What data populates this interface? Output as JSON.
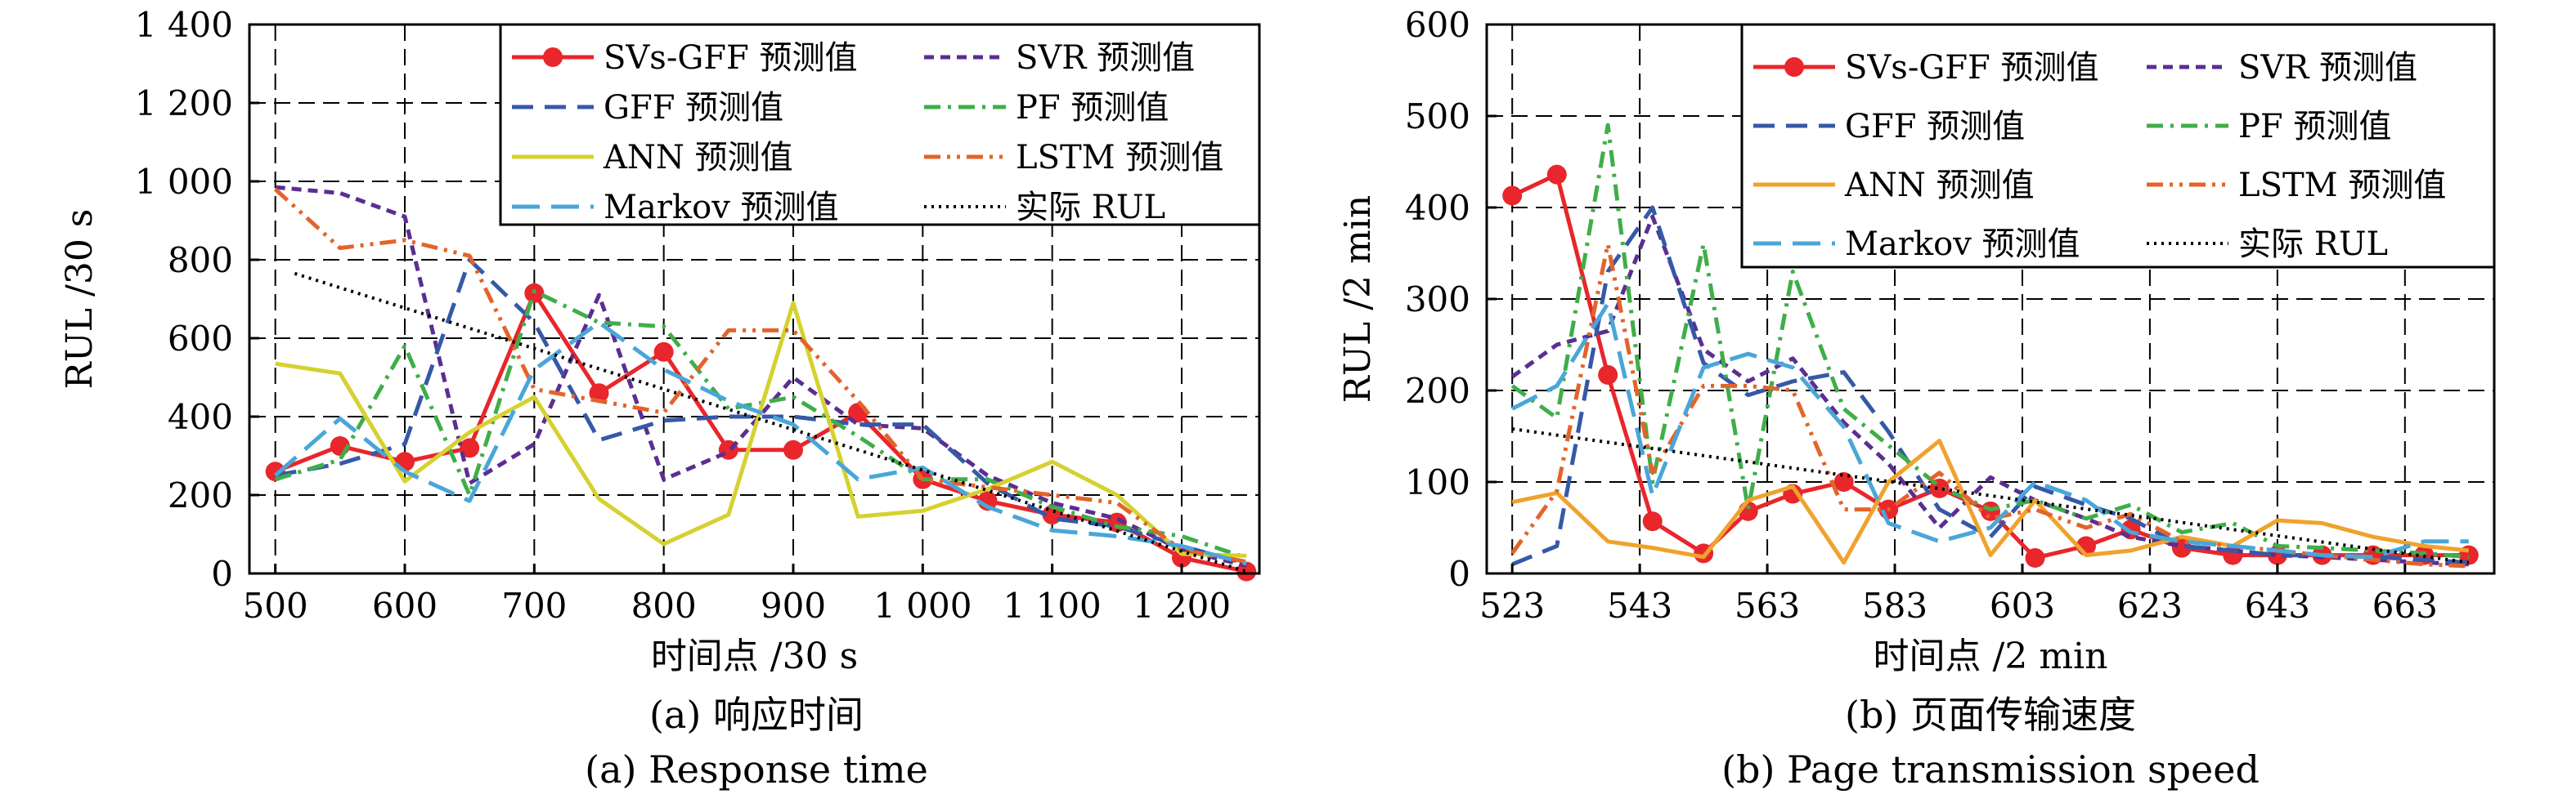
{
  "chart_data": [
    {
      "type": "line",
      "xlabel": "时间点 /30 s",
      "ylabel": "RUL /30 s",
      "captions": [
        "(a) 响应时间",
        "(a) Response time"
      ],
      "xlim": [
        480,
        1260
      ],
      "ylim": [
        0,
        1400
      ],
      "xticks": [
        500,
        600,
        700,
        800,
        900,
        1000,
        1100,
        1200
      ],
      "xtick_labels": [
        "500",
        "600",
        "700",
        "800",
        "900",
        "1 000",
        "1 100",
        "1 200"
      ],
      "yticks": [
        0,
        200,
        400,
        600,
        800,
        1000,
        1200,
        1400
      ],
      "ytick_labels": [
        "0",
        "200",
        "400",
        "600",
        "800",
        "1 000",
        "1 200",
        "1 400"
      ],
      "grid": true,
      "legend_position": "top-right",
      "series": [
        {
          "name": "SVs-GFF 预测值",
          "color": "#e8262b",
          "style": "solid-marker",
          "x": [
            500,
            550,
            600,
            650,
            700,
            750,
            800,
            850,
            900,
            950,
            1000,
            1050,
            1100,
            1150,
            1200,
            1250
          ],
          "y": [
            260,
            325,
            285,
            320,
            715,
            460,
            565,
            315,
            315,
            410,
            240,
            185,
            150,
            130,
            40,
            5
          ]
        },
        {
          "name": "SVR 预测值",
          "color": "#5b2e91",
          "style": "dash",
          "x": [
            500,
            550,
            600,
            650,
            700,
            750,
            800,
            850,
            900,
            950,
            1000,
            1050,
            1100,
            1150,
            1200,
            1250
          ],
          "y": [
            985,
            970,
            910,
            230,
            330,
            710,
            240,
            310,
            500,
            380,
            370,
            250,
            180,
            140,
            60,
            20
          ]
        },
        {
          "name": "GFF 预测值",
          "color": "#3559a8",
          "style": "longdash",
          "x": [
            500,
            550,
            600,
            650,
            700,
            750,
            800,
            850,
            900,
            950,
            1000,
            1050,
            1100,
            1150,
            1200,
            1250
          ],
          "y": [
            250,
            280,
            330,
            800,
            640,
            340,
            390,
            400,
            400,
            380,
            380,
            230,
            140,
            120,
            70,
            25
          ]
        },
        {
          "name": "PF 预测值",
          "color": "#3fae49",
          "style": "dashdot",
          "x": [
            500,
            550,
            600,
            650,
            700,
            750,
            800,
            850,
            900,
            950,
            1000,
            1050,
            1100,
            1150,
            1200,
            1250
          ],
          "y": [
            240,
            290,
            580,
            200,
            720,
            640,
            630,
            420,
            450,
            350,
            240,
            240,
            170,
            120,
            95,
            40
          ]
        },
        {
          "name": "ANN 预测值",
          "color": "#d6d130",
          "style": "solid",
          "x": [
            500,
            550,
            600,
            650,
            700,
            750,
            800,
            850,
            900,
            950,
            1000,
            1050,
            1100,
            1150,
            1200,
            1250
          ],
          "y": [
            535,
            510,
            235,
            360,
            450,
            190,
            75,
            150,
            690,
            145,
            160,
            215,
            285,
            200,
            50,
            45
          ]
        },
        {
          "name": "LSTM 预测值",
          "color": "#e3642a",
          "style": "dashdotdot",
          "x": [
            500,
            550,
            600,
            650,
            700,
            750,
            800,
            850,
            900,
            950,
            1000,
            1050,
            1100,
            1150,
            1200,
            1250
          ],
          "y": [
            980,
            830,
            850,
            810,
            470,
            440,
            410,
            620,
            620,
            440,
            240,
            220,
            200,
            180,
            60,
            30
          ]
        },
        {
          "name": "Markov 预测值",
          "color": "#4aa6d8",
          "style": "longdash2",
          "x": [
            500,
            550,
            600,
            650,
            700,
            750,
            800,
            850,
            900,
            950,
            1000,
            1050,
            1100,
            1150,
            1200,
            1250
          ],
          "y": [
            250,
            395,
            260,
            185,
            520,
            640,
            520,
            440,
            380,
            240,
            270,
            170,
            110,
            95,
            70,
            25
          ]
        },
        {
          "name": "实际 RUL",
          "color": "#000000",
          "style": "dot",
          "x": [
            515,
            1250
          ],
          "y": [
            765,
            5
          ]
        }
      ]
    },
    {
      "type": "line",
      "xlabel": "时间点 /2 min",
      "ylabel": "RUL /2 min",
      "captions": [
        "(b) 页面传输速度",
        "(b) Page transmission speed"
      ],
      "xlim": [
        519,
        677
      ],
      "ylim": [
        0,
        600
      ],
      "xticks": [
        523,
        543,
        563,
        583,
        603,
        623,
        643,
        663
      ],
      "xtick_labels": [
        "523",
        "543",
        "563",
        "583",
        "603",
        "623",
        "643",
        "663"
      ],
      "yticks": [
        0,
        100,
        200,
        300,
        400,
        500,
        600
      ],
      "ytick_labels": [
        "0",
        "100",
        "200",
        "300",
        "400",
        "500",
        "600"
      ],
      "grid": true,
      "legend_position": "top-right",
      "series": [
        {
          "name": "SVs-GFF 预测值",
          "color": "#e8262b",
          "style": "solid-marker",
          "x": [
            523,
            530,
            538,
            545,
            553,
            560,
            567,
            575,
            582,
            590,
            598,
            605,
            613,
            620,
            628,
            636,
            643,
            650,
            658,
            666,
            673
          ],
          "y": [
            413,
            436,
            217,
            57,
            22,
            68,
            87,
            100,
            70,
            93,
            68,
            17,
            30,
            48,
            28,
            20,
            20,
            20,
            20,
            20,
            20
          ]
        },
        {
          "name": "SVR 预测值",
          "color": "#5b2e91",
          "style": "dash",
          "x": [
            523,
            530,
            538,
            545,
            553,
            560,
            567,
            575,
            582,
            590,
            598,
            605,
            613,
            620,
            628,
            636,
            643,
            650,
            658,
            666,
            673
          ],
          "y": [
            215,
            250,
            265,
            390,
            245,
            210,
            235,
            165,
            120,
            50,
            105,
            80,
            60,
            40,
            30,
            25,
            20,
            18,
            15,
            12,
            10
          ]
        },
        {
          "name": "GFF 预测值",
          "color": "#3559a8",
          "style": "longdash",
          "x": [
            523,
            530,
            538,
            545,
            553,
            560,
            567,
            575,
            582,
            590,
            598,
            605,
            613,
            620,
            628,
            636,
            643,
            650,
            658,
            666,
            673
          ],
          "y": [
            10,
            30,
            330,
            400,
            230,
            195,
            210,
            220,
            155,
            70,
            40,
            95,
            75,
            60,
            30,
            25,
            20,
            20,
            18,
            15,
            12
          ]
        },
        {
          "name": "PF 预测值",
          "color": "#3fae49",
          "style": "dashdot",
          "x": [
            523,
            530,
            538,
            545,
            553,
            560,
            567,
            575,
            582,
            590,
            598,
            605,
            613,
            620,
            628,
            636,
            643,
            650,
            658,
            666,
            673
          ],
          "y": [
            205,
            170,
            490,
            100,
            360,
            70,
            330,
            180,
            140,
            95,
            70,
            80,
            60,
            75,
            45,
            55,
            30,
            28,
            25,
            22,
            18
          ]
        },
        {
          "name": "ANN 预测值",
          "color": "#f0a22e",
          "style": "solid",
          "x": [
            523,
            530,
            538,
            545,
            553,
            560,
            567,
            575,
            582,
            590,
            598,
            605,
            613,
            620,
            628,
            636,
            643,
            650,
            658,
            666,
            673
          ],
          "y": [
            78,
            88,
            35,
            28,
            18,
            80,
            95,
            12,
            100,
            145,
            20,
            80,
            20,
            25,
            40,
            30,
            58,
            55,
            40,
            30,
            25
          ]
        },
        {
          "name": "LSTM 预测值",
          "color": "#e3642a",
          "style": "dashdotdot",
          "x": [
            523,
            530,
            538,
            545,
            553,
            560,
            567,
            575,
            582,
            590,
            598,
            605,
            613,
            620,
            628,
            636,
            643,
            650,
            658,
            666,
            673
          ],
          "y": [
            22,
            90,
            360,
            110,
            205,
            205,
            200,
            70,
            70,
            110,
            60,
            70,
            50,
            65,
            35,
            30,
            25,
            20,
            15,
            10,
            8
          ]
        },
        {
          "name": "Markov 预测值",
          "color": "#4aa6d8",
          "style": "longdash2",
          "x": [
            523,
            530,
            538,
            545,
            553,
            560,
            567,
            575,
            582,
            590,
            598,
            605,
            613,
            620,
            628,
            636,
            643,
            650,
            658,
            666,
            673
          ],
          "y": [
            180,
            205,
            295,
            85,
            225,
            240,
            225,
            160,
            55,
            35,
            50,
            100,
            80,
            45,
            35,
            30,
            25,
            20,
            18,
            35,
            35
          ]
        },
        {
          "name": "实际 RUL",
          "color": "#000000",
          "style": "dot",
          "x": [
            523,
            673
          ],
          "y": [
            158,
            12
          ]
        }
      ]
    }
  ]
}
